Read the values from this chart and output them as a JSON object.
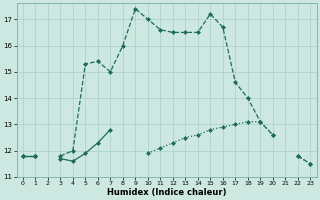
{
  "xlabel": "Humidex (Indice chaleur)",
  "x_values": [
    0,
    1,
    2,
    3,
    4,
    5,
    6,
    7,
    8,
    9,
    10,
    11,
    12,
    13,
    14,
    15,
    16,
    17,
    18,
    19,
    20,
    21,
    22,
    23
  ],
  "line_main": [
    11.8,
    11.8,
    null,
    11.8,
    12.0,
    15.3,
    15.4,
    15.0,
    16.0,
    17.4,
    17.0,
    16.6,
    16.5,
    16.5,
    16.5,
    17.2,
    16.7,
    14.6,
    14.0,
    13.1,
    12.6,
    null,
    11.8,
    11.5
  ],
  "line_low": [
    11.8,
    11.8,
    null,
    null,
    null,
    null,
    null,
    null,
    null,
    null,
    11.9,
    12.1,
    12.3,
    12.5,
    12.6,
    12.8,
    12.9,
    13.0,
    13.1,
    13.1,
    12.6,
    null,
    11.8,
    11.5
  ],
  "line_early": [
    11.8,
    11.8,
    null,
    11.7,
    11.6,
    11.9,
    12.3,
    12.8,
    null,
    null,
    null,
    null,
    null,
    null,
    null,
    null,
    null,
    null,
    null,
    null,
    null,
    null,
    null,
    null
  ],
  "bg_color": "#cce8e0",
  "line_color": "#1e6b5e",
  "grid_color": "#aacfc7",
  "ylim": [
    11.0,
    17.6
  ],
  "yticks": [
    11,
    12,
    13,
    14,
    15,
    16,
    17
  ],
  "xticks": [
    0,
    1,
    2,
    3,
    4,
    5,
    6,
    7,
    8,
    9,
    10,
    11,
    12,
    13,
    14,
    15,
    16,
    17,
    18,
    19,
    20,
    21,
    22,
    23
  ]
}
